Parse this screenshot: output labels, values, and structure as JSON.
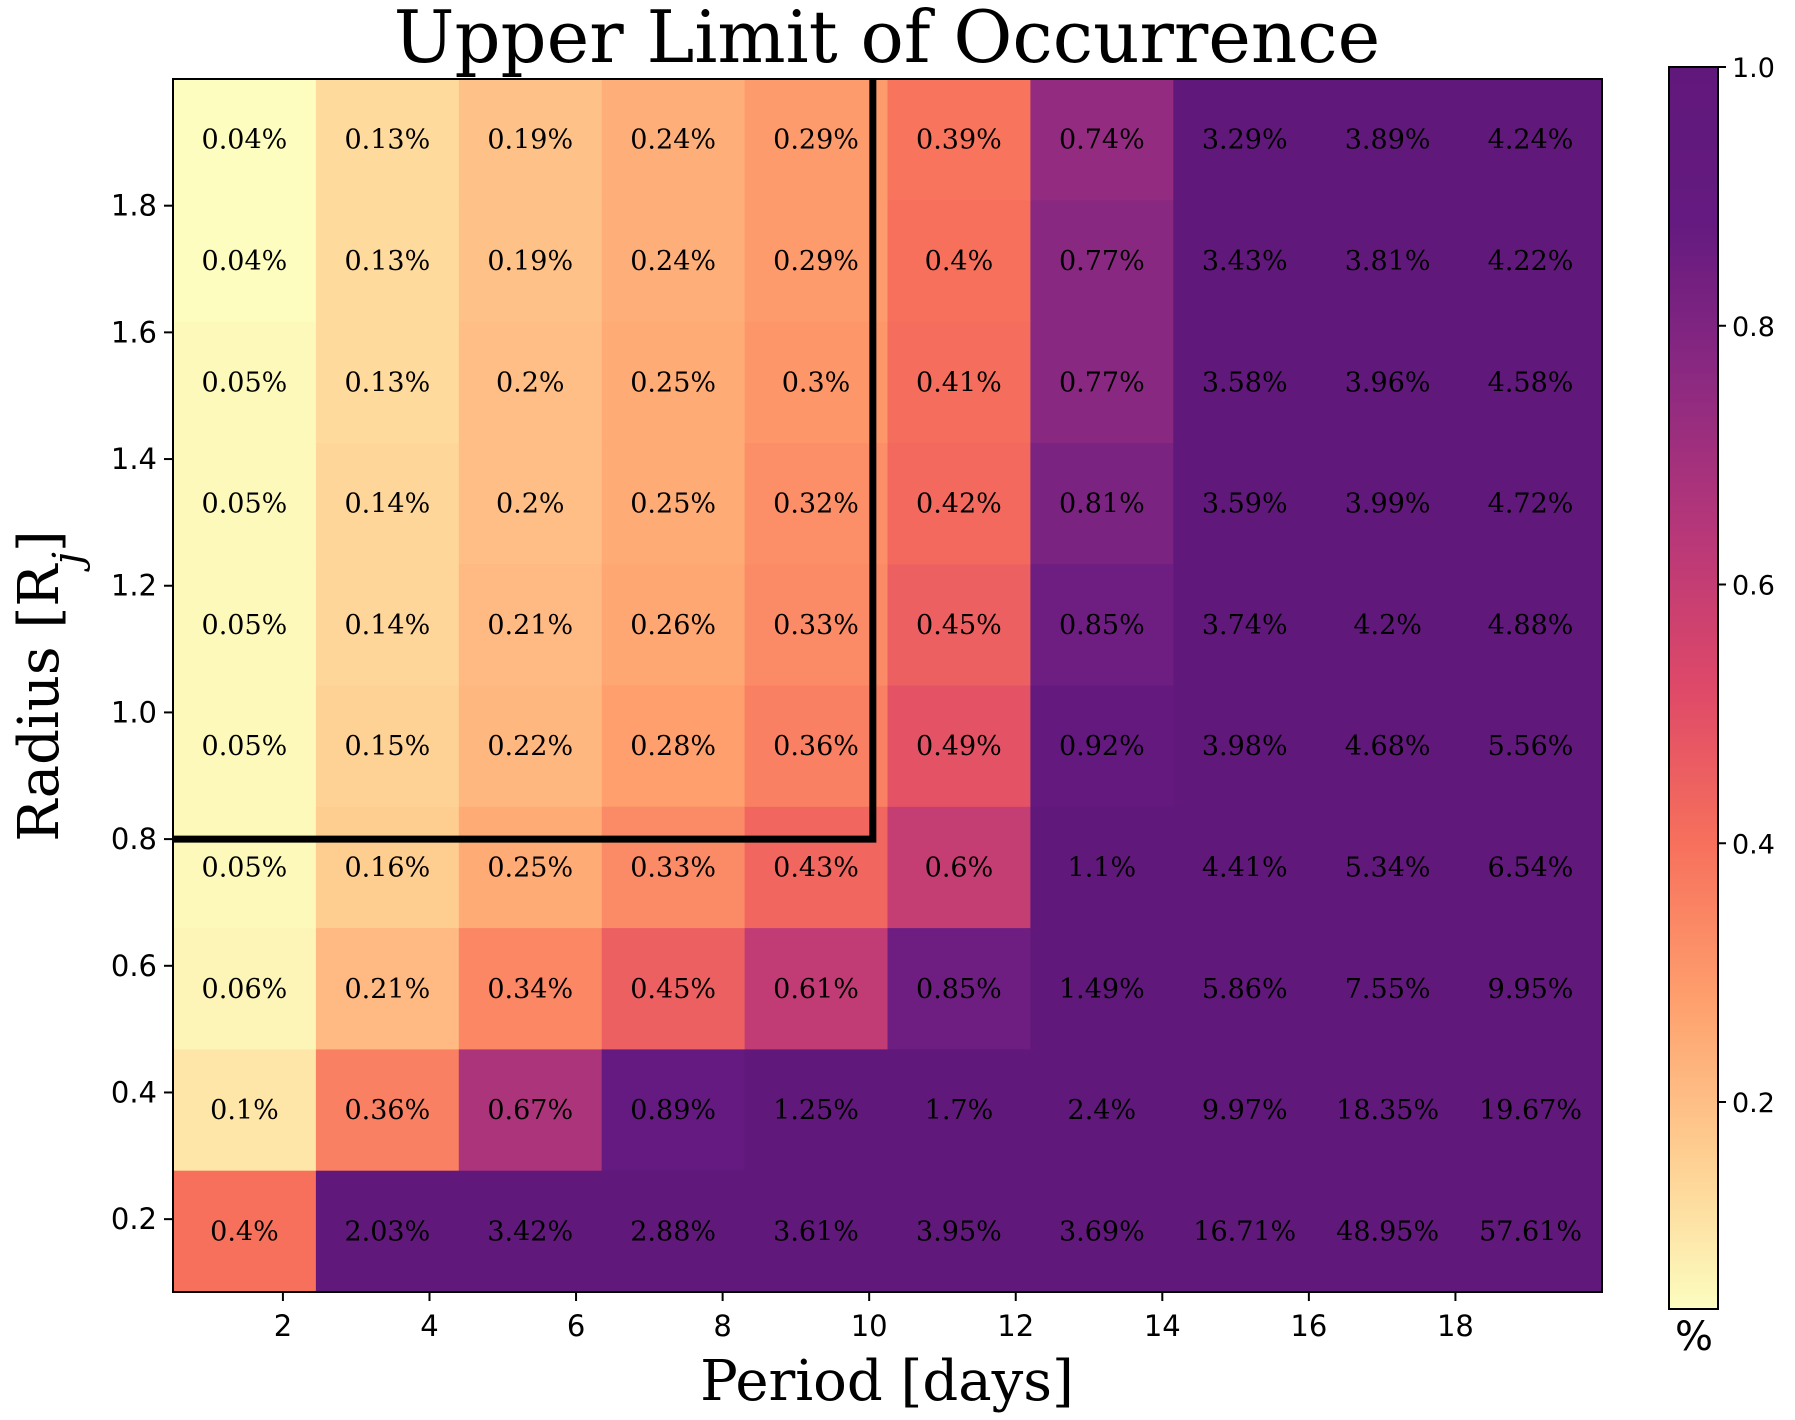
{
  "chart_data": {
    "type": "heatmap",
    "title": "Upper Limit of Occurrence",
    "xlabel": "Period [days]",
    "ylabel": "Radius [R",
    "ylabel_subscript": "j",
    "ylabel_close": "]",
    "x_range": [
      0.5,
      20.0
    ],
    "y_range": [
      0.085,
      2.0
    ],
    "x_bin_edges": [
      0.5,
      2.45,
      4.4,
      6.35,
      8.3,
      10.25,
      12.2,
      14.15,
      16.1,
      18.05,
      20.0
    ],
    "y_bin_edges": [
      0.085,
      0.2765,
      0.468,
      0.6595,
      0.851,
      1.0425,
      1.234,
      1.4255,
      1.617,
      1.8085,
      2.0
    ],
    "x_ticks": [
      2,
      4,
      6,
      8,
      10,
      12,
      14,
      16,
      18
    ],
    "x_tick_labels": [
      "2",
      "4",
      "6",
      "8",
      "10",
      "12",
      "14",
      "16",
      "18"
    ],
    "y_ticks": [
      0.2,
      0.4,
      0.6,
      0.8,
      1.0,
      1.2,
      1.4,
      1.6,
      1.8
    ],
    "y_tick_labels": [
      "0.2",
      "0.4",
      "0.6",
      "0.8",
      "1.0",
      "1.2",
      "1.4",
      "1.6",
      "1.8"
    ],
    "rows_top_to_bottom": [
      {
        "values": [
          0.04,
          0.13,
          0.19,
          0.24,
          0.29,
          0.39,
          0.74,
          3.29,
          3.89,
          4.24
        ],
        "labels": [
          "0.04%",
          "0.13%",
          "0.19%",
          "0.24%",
          "0.29%",
          "0.39%",
          "0.74%",
          "3.29%",
          "3.89%",
          "4.24%"
        ]
      },
      {
        "values": [
          0.04,
          0.13,
          0.19,
          0.24,
          0.29,
          0.4,
          0.77,
          3.43,
          3.81,
          4.22
        ],
        "labels": [
          "0.04%",
          "0.13%",
          "0.19%",
          "0.24%",
          "0.29%",
          "0.4%",
          "0.77%",
          "3.43%",
          "3.81%",
          "4.22%"
        ]
      },
      {
        "values": [
          0.05,
          0.13,
          0.2,
          0.25,
          0.3,
          0.41,
          0.77,
          3.58,
          3.96,
          4.58
        ],
        "labels": [
          "0.05%",
          "0.13%",
          "0.2%",
          "0.25%",
          "0.3%",
          "0.41%",
          "0.77%",
          "3.58%",
          "3.96%",
          "4.58%"
        ]
      },
      {
        "values": [
          0.05,
          0.14,
          0.2,
          0.25,
          0.32,
          0.42,
          0.81,
          3.59,
          3.99,
          4.72
        ],
        "labels": [
          "0.05%",
          "0.14%",
          "0.2%",
          "0.25%",
          "0.32%",
          "0.42%",
          "0.81%",
          "3.59%",
          "3.99%",
          "4.72%"
        ]
      },
      {
        "values": [
          0.05,
          0.14,
          0.21,
          0.26,
          0.33,
          0.45,
          0.85,
          3.74,
          4.2,
          4.88
        ],
        "labels": [
          "0.05%",
          "0.14%",
          "0.21%",
          "0.26%",
          "0.33%",
          "0.45%",
          "0.85%",
          "3.74%",
          "4.2%",
          "4.88%"
        ]
      },
      {
        "values": [
          0.05,
          0.15,
          0.22,
          0.28,
          0.36,
          0.49,
          0.92,
          3.98,
          4.68,
          5.56
        ],
        "labels": [
          "0.05%",
          "0.15%",
          "0.22%",
          "0.28%",
          "0.36%",
          "0.49%",
          "0.92%",
          "3.98%",
          "4.68%",
          "5.56%"
        ]
      },
      {
        "values": [
          0.05,
          0.16,
          0.25,
          0.33,
          0.43,
          0.6,
          1.1,
          4.41,
          5.34,
          6.54
        ],
        "labels": [
          "0.05%",
          "0.16%",
          "0.25%",
          "0.33%",
          "0.43%",
          "0.6%",
          "1.1%",
          "4.41%",
          "5.34%",
          "6.54%"
        ]
      },
      {
        "values": [
          0.06,
          0.21,
          0.34,
          0.45,
          0.61,
          0.85,
          1.49,
          5.86,
          7.55,
          9.95
        ],
        "labels": [
          "0.06%",
          "0.21%",
          "0.34%",
          "0.45%",
          "0.61%",
          "0.85%",
          "1.49%",
          "5.86%",
          "7.55%",
          "9.95%"
        ]
      },
      {
        "values": [
          0.1,
          0.36,
          0.67,
          0.89,
          1.25,
          1.7,
          2.4,
          9.97,
          18.35,
          19.67
        ],
        "labels": [
          "0.1%",
          "0.36%",
          "0.67%",
          "0.89%",
          "1.25%",
          "1.7%",
          "2.4%",
          "9.97%",
          "18.35%",
          "19.67%"
        ]
      },
      {
        "values": [
          0.4,
          2.03,
          3.42,
          2.88,
          3.61,
          3.95,
          3.69,
          16.71,
          48.95,
          57.61
        ],
        "labels": [
          "0.4%",
          "2.03%",
          "3.42%",
          "2.88%",
          "3.61%",
          "3.95%",
          "3.69%",
          "16.71%",
          "48.95%",
          "57.61%"
        ]
      }
    ],
    "colormap": "magma_r",
    "color_scale": {
      "min": 0.04,
      "max": 1.0
    },
    "colorbar_ticks": [
      0.2,
      0.4,
      0.6,
      0.8,
      1.0
    ],
    "colorbar_tick_labels": [
      "0.2",
      "0.4",
      "0.6",
      "0.8",
      "1.0"
    ],
    "colorbar_label": "%",
    "boundary_line": {
      "points": [
        [
          0.5,
          0.8
        ],
        [
          10.05,
          0.8
        ],
        [
          10.05,
          2.0
        ]
      ],
      "color": "#000000"
    }
  }
}
